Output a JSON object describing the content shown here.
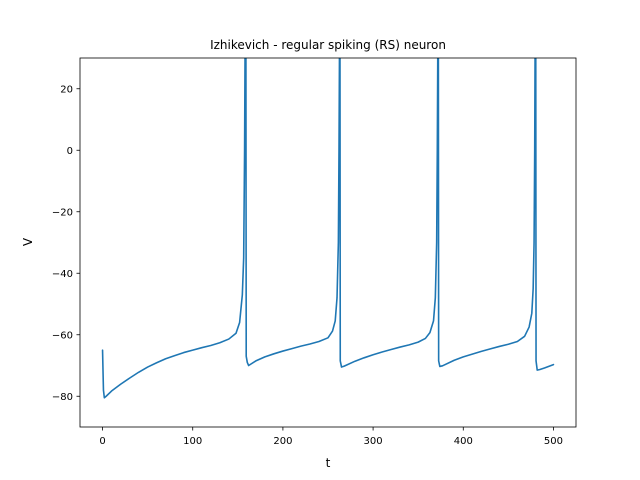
{
  "chart_data": {
    "type": "line",
    "title": "Izhikevich - regular spiking (RS) neuron",
    "xlabel": "t",
    "ylabel": "V",
    "xlim": [
      -25,
      525
    ],
    "ylim": [
      -90,
      30
    ],
    "xticks": [
      0,
      100,
      200,
      300,
      400,
      500
    ],
    "yticks": [
      -80,
      -60,
      -40,
      -20,
      0,
      20
    ],
    "grid": false,
    "legend": "none",
    "series": [
      {
        "color": "#1f77b4",
        "points": [
          [
            0,
            -65
          ],
          [
            1,
            -78
          ],
          [
            2,
            -80.5
          ],
          [
            4,
            -80
          ],
          [
            10,
            -78.3
          ],
          [
            20,
            -76.1
          ],
          [
            30,
            -74.1
          ],
          [
            40,
            -72.2
          ],
          [
            50,
            -70.5
          ],
          [
            60,
            -69.1
          ],
          [
            70,
            -67.8
          ],
          [
            80,
            -66.8
          ],
          [
            90,
            -65.8
          ],
          [
            100,
            -65
          ],
          [
            110,
            -64.2
          ],
          [
            120,
            -63.5
          ],
          [
            130,
            -62.6
          ],
          [
            140,
            -61.4
          ],
          [
            148,
            -59.5
          ],
          [
            152,
            -56
          ],
          [
            155,
            -47
          ],
          [
            156.5,
            -35
          ],
          [
            157.5,
            0
          ],
          [
            158,
            30
          ],
          [
            159,
            30
          ],
          [
            159.3,
            -67
          ],
          [
            160.5,
            -69
          ],
          [
            162,
            -70
          ],
          [
            170,
            -68.5
          ],
          [
            180,
            -67.2
          ],
          [
            190,
            -66.2
          ],
          [
            200,
            -65.3
          ],
          [
            210,
            -64.5
          ],
          [
            220,
            -63.7
          ],
          [
            230,
            -63
          ],
          [
            240,
            -62.2
          ],
          [
            250,
            -61
          ],
          [
            255,
            -58.8
          ],
          [
            258,
            -55.5
          ],
          [
            260,
            -48
          ],
          [
            261.5,
            -30
          ],
          [
            262.2,
            0
          ],
          [
            262.7,
            30
          ],
          [
            263.3,
            30
          ],
          [
            263.6,
            -68.5
          ],
          [
            265,
            -70.5
          ],
          [
            268,
            -70.2
          ],
          [
            280,
            -68.6
          ],
          [
            290,
            -67.5
          ],
          [
            300,
            -66.5
          ],
          [
            310,
            -65.6
          ],
          [
            320,
            -64.8
          ],
          [
            330,
            -64
          ],
          [
            340,
            -63.3
          ],
          [
            350,
            -62.4
          ],
          [
            358,
            -61.2
          ],
          [
            363,
            -59.3
          ],
          [
            367,
            -55.5
          ],
          [
            369,
            -48
          ],
          [
            370.5,
            -30
          ],
          [
            371.2,
            0
          ],
          [
            371.7,
            30
          ],
          [
            372.4,
            30
          ],
          [
            372.7,
            -68.5
          ],
          [
            374,
            -70.3
          ],
          [
            377,
            -70.1
          ],
          [
            390,
            -68.3
          ],
          [
            400,
            -67.2
          ],
          [
            410,
            -66.3
          ],
          [
            420,
            -65.4
          ],
          [
            430,
            -64.6
          ],
          [
            440,
            -63.8
          ],
          [
            450,
            -63.1
          ],
          [
            460,
            -62.2
          ],
          [
            468,
            -60.5
          ],
          [
            473,
            -57.5
          ],
          [
            476,
            -53
          ],
          [
            477.5,
            -45
          ],
          [
            478.5,
            -30
          ],
          [
            479.2,
            0
          ],
          [
            479.6,
            30
          ],
          [
            480.4,
            30
          ],
          [
            480.7,
            -68.5
          ],
          [
            482,
            -71.5
          ],
          [
            485,
            -71.3
          ],
          [
            490,
            -70.8
          ],
          [
            500,
            -69.7
          ]
        ]
      }
    ]
  }
}
